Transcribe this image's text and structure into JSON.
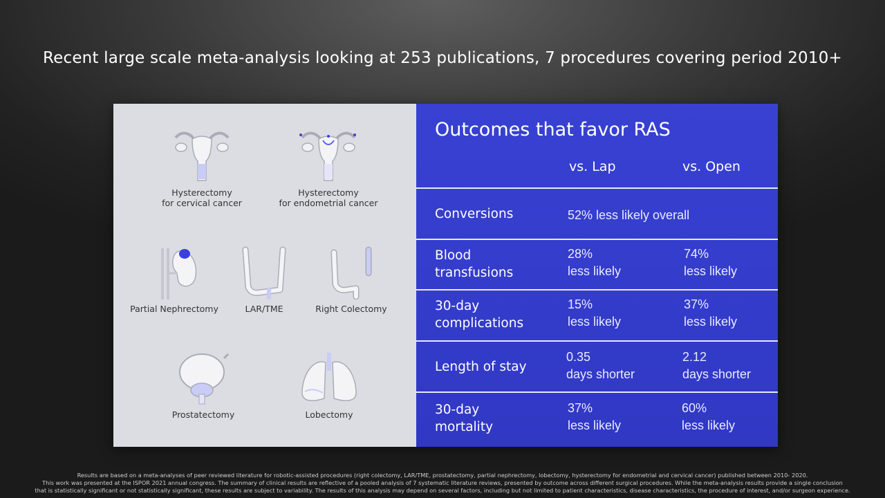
{
  "headline": "Recent large scale meta-analysis looking at 253 publications, 7 procedures covering period 2010+",
  "procedures": [
    {
      "line1": "Hysterectomy",
      "line2": "for cervical cancer"
    },
    {
      "line1": "Hysterectomy",
      "line2": "for endometrial cancer"
    },
    {
      "line1": "Partial Nephrectomy"
    },
    {
      "line1": "LAR/TME"
    },
    {
      "line1": "Right Colectomy"
    },
    {
      "line1": "Prostatectomy"
    },
    {
      "line1": "Lobectomy"
    }
  ],
  "outcomes": {
    "title": "Outcomes that favor RAS",
    "col_lap": "vs. Lap",
    "col_open": "vs. Open",
    "rows": [
      {
        "label1": "Conversions",
        "label2": "",
        "combined": "52% less likely overall"
      },
      {
        "label1": "Blood",
        "label2": "transfusions",
        "lap1": "28%",
        "lap2": "less likely",
        "open1": "74%",
        "open2": "less likely"
      },
      {
        "label1": "30-day",
        "label2": "complications",
        "lap1": "15%",
        "lap2": "less likely",
        "open1": "37%",
        "open2": "less likely"
      },
      {
        "label1": "Length of stay",
        "label2": "",
        "lap1": "0.35",
        "lap2": "days shorter",
        "open1": "2.12",
        "open2": "days shorter"
      },
      {
        "label1": "30-day",
        "label2": "mortality",
        "lap1": "37%",
        "lap2": "less likely",
        "open1": "60%",
        "open2": "less likely"
      }
    ]
  },
  "footnote": {
    "line1": "Results are based on a meta-analyses of peer reviewed literature for robotic-assisted procedures (right colectomy, LAR/TME, prostatectomy, partial nephrectomy, lobectomy, hysterectomy for endometrial and cervical cancer) published between 2010- 2020.",
    "line2": "This work was presented at the ISPOR 2021 annual congress. The summary of clinical results are reflective of a pooled analysis of 7 systematic literature reviews, presented by outcome across different surgical procedures. While the meta-analysis results provide a single conclusion",
    "line3": "that is statistically significant or not statistically significant, these results are subject to variability. The results of this analysis may depend on several factors, including but not limited to patient characteristics, disease characteristics, the procedure of interest, and/or surgeon experience."
  },
  "colors": {
    "panel_blue": "#3038c4",
    "accent_blue": "#3b3fe0"
  }
}
